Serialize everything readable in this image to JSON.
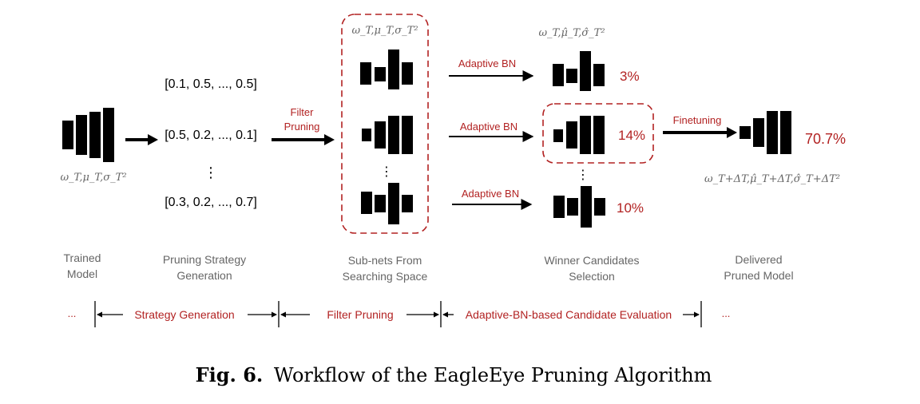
{
  "colors": {
    "accent": "#b22222",
    "ink": "#000000",
    "muted": "#666666"
  },
  "math": {
    "weights_stats": "ω_T,μ_T,σ_T²",
    "adaptive_stats": "ω_T,μ̂_T,σ̂_T²",
    "finetuned_stats": "ω_T+ΔT,μ̂_T+ΔT,σ̂_T+ΔT²"
  },
  "strategies": [
    "[0.1, 0.5, ..., 0.5]",
    "[0.5, 0.2, ..., 0.1]",
    "[0.3, 0.2, ..., 0.7]"
  ],
  "vdots": "⋮",
  "arrows": {
    "filter_pruning_line1": "Filter",
    "filter_pruning_line2": "Pruning",
    "adaptive_bn": "Adaptive BN",
    "finetuning": "Finetuning"
  },
  "accuracies": [
    "3%",
    "14%",
    "10%"
  ],
  "final_accuracy": "70.7%",
  "stages": [
    {
      "line1": "Trained",
      "line2": "Model"
    },
    {
      "line1": "Pruning Strategy",
      "line2": "Generation"
    },
    {
      "line1": "Sub-nets From",
      "line2": "Searching Space"
    },
    {
      "line1": "Winner Candidates",
      "line2": "Selection"
    },
    {
      "line1": "Delivered",
      "line2": "Pruned Model"
    }
  ],
  "phases": {
    "ellipsis": "...",
    "strategy_generation": "Strategy Generation",
    "filter_pruning": "Filter Pruning",
    "candidate_evaluation": "Adaptive-BN-based Candidate Evaluation"
  },
  "caption": {
    "label": "Fig. 6.",
    "text": "Workflow of the EagleEye Pruning Algorithm"
  }
}
